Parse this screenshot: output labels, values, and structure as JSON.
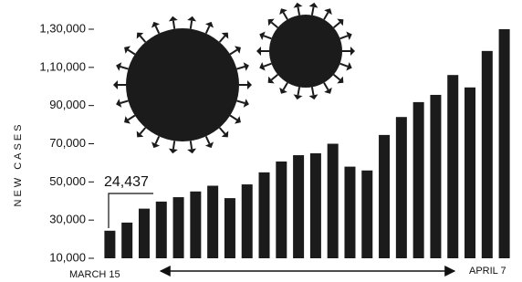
{
  "chart_data": {
    "type": "bar",
    "y_label": "NEW CASES",
    "start_label": "MARCH 15",
    "end_label": "APRIL 7",
    "annotation": "24,437",
    "color": "#1b1b1b",
    "values": [
      24437,
      28700,
      36000,
      39700,
      42000,
      45000,
      48000,
      41500,
      48700,
      55000,
      60700,
      64000,
      65000,
      70000,
      58000,
      56000,
      74600,
      84000,
      91800,
      95600,
      106000,
      99500,
      118600,
      130000
    ],
    "ylim": [
      10000,
      130000
    ],
    "yticks": [
      {
        "value": 10000,
        "label": "10,000"
      },
      {
        "value": 30000,
        "label": "30,000"
      },
      {
        "value": 50000,
        "label": "50,000"
      },
      {
        "value": 70000,
        "label": "70,000"
      },
      {
        "value": 90000,
        "label": "90,000"
      },
      {
        "value": 110000,
        "label": "1,10,000"
      },
      {
        "value": 130000,
        "label": "1,30,000"
      }
    ]
  }
}
